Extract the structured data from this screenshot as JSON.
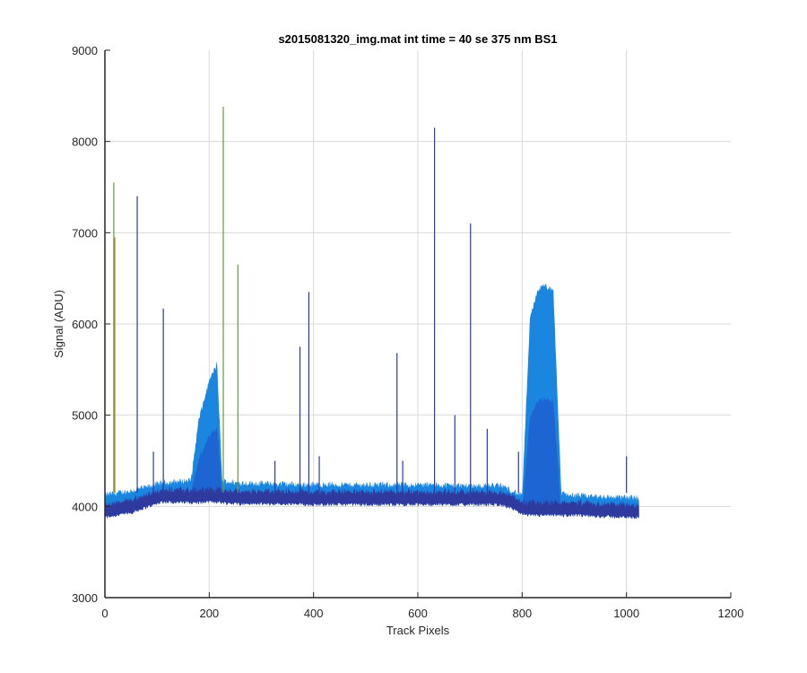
{
  "chart_data": {
    "type": "line",
    "title": "s2015081320_img.mat int time = 40 se  375 nm BS1",
    "xlabel": "Track Pixels",
    "ylabel": "Signal (ADU)",
    "xlim": [
      0,
      1200
    ],
    "ylim": [
      3000,
      9000
    ],
    "x_ticks": [
      "0",
      "200",
      "400",
      "600",
      "800",
      "1000",
      "1200"
    ],
    "y_ticks": [
      "3000",
      "4000",
      "5000",
      "6000",
      "7000",
      "8000",
      "9000"
    ],
    "grid": true,
    "colors": {
      "dark_band": "#2e3a9e",
      "mid_band": "#1f5fd0",
      "bright_band": "#1a86e0",
      "spike_green": "#6a9a3a",
      "spike_orange": "#b8862a",
      "grid": "#d9d9d9",
      "axis": "#262626"
    },
    "series": [
      {
        "envelope": true,
        "x": [
          0,
          50,
          110,
          165,
          180,
          200,
          215,
          225,
          250,
          400,
          600,
          700,
          760,
          800,
          815,
          830,
          845,
          860,
          875,
          900,
          1000,
          1024
        ],
        "upper": [
          4130,
          4170,
          4260,
          4290,
          4950,
          5380,
          5560,
          4280,
          4260,
          4240,
          4240,
          4230,
          4230,
          4120,
          6050,
          6380,
          6420,
          6350,
          4150,
          4120,
          4100,
          4100
        ],
        "lower": [
          3880,
          3930,
          4050,
          4040,
          4040,
          4050,
          4050,
          4040,
          4030,
          4020,
          4020,
          4020,
          4020,
          3920,
          3900,
          3900,
          3900,
          3900,
          3900,
          3900,
          3880,
          3880
        ]
      }
    ],
    "spikes": [
      {
        "x": 17,
        "y": 7550,
        "color": "green"
      },
      {
        "x": 19,
        "y": 6950,
        "color": "orange"
      },
      {
        "x": 62,
        "y": 7400,
        "color": "blue"
      },
      {
        "x": 93,
        "y": 4600,
        "color": "blue"
      },
      {
        "x": 112,
        "y": 6170,
        "color": "blue"
      },
      {
        "x": 227,
        "y": 8380,
        "color": "green"
      },
      {
        "x": 255,
        "y": 6650,
        "color": "green"
      },
      {
        "x": 326,
        "y": 4500,
        "color": "blue"
      },
      {
        "x": 374,
        "y": 5750,
        "color": "blue"
      },
      {
        "x": 391,
        "y": 6350,
        "color": "blue"
      },
      {
        "x": 411,
        "y": 4550,
        "color": "blue"
      },
      {
        "x": 560,
        "y": 5680,
        "color": "blue"
      },
      {
        "x": 571,
        "y": 4500,
        "color": "blue"
      },
      {
        "x": 632,
        "y": 8150,
        "color": "blue"
      },
      {
        "x": 671,
        "y": 5000,
        "color": "blue"
      },
      {
        "x": 701,
        "y": 7100,
        "color": "blue"
      },
      {
        "x": 733,
        "y": 4850,
        "color": "blue"
      },
      {
        "x": 793,
        "y": 4600,
        "color": "blue"
      },
      {
        "x": 1000,
        "y": 4550,
        "color": "blue"
      }
    ]
  }
}
